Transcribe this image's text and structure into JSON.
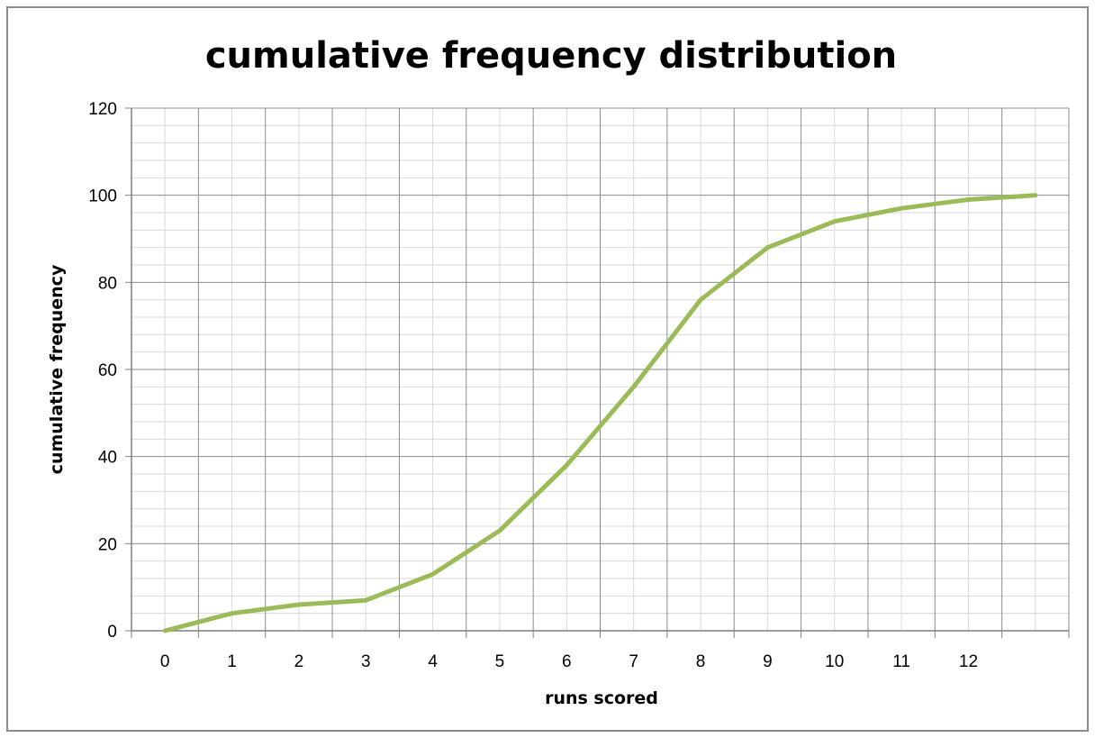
{
  "chart_data": {
    "type": "line",
    "title": "cumulative frequency distribution",
    "xlabel": "runs scored",
    "ylabel": "cumulative frequency",
    "x_tick_labels": [
      "0",
      "1",
      "2",
      "3",
      "4",
      "5",
      "6",
      "7",
      "8",
      "9",
      "10",
      "11",
      "12"
    ],
    "ylim": [
      0,
      120
    ],
    "y_ticks": [
      0,
      20,
      40,
      60,
      80,
      100,
      120
    ],
    "grid": true,
    "legend": "none",
    "series": [
      {
        "color": "#9bbb59",
        "x": [
          0,
          0.5,
          1,
          1.5,
          2,
          2.5,
          3,
          3.5,
          4,
          4.5,
          5,
          5.5,
          6,
          6.5,
          7,
          7.5,
          8,
          8.5,
          9,
          9.5,
          10,
          10.5,
          11,
          11.5,
          12,
          12.5,
          13
        ],
        "y": [
          0,
          2,
          4,
          5,
          6,
          6.5,
          7,
          10,
          13,
          18,
          23,
          30.5,
          38,
          47,
          56,
          66,
          76,
          82,
          88,
          91,
          94,
          95.5,
          97,
          98,
          99,
          99.5,
          100
        ]
      }
    ]
  }
}
